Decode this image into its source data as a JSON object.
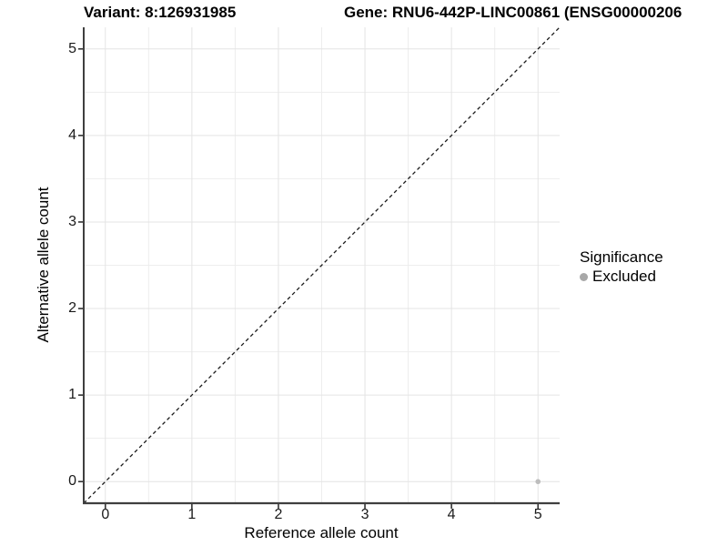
{
  "chart_data": {
    "type": "scatter",
    "title_parts": {
      "variant": "Variant: 8:126931985",
      "gene": "Gene: RNU6-442P-LINC00861 (ENSG00000206"
    },
    "xlabel": "Reference allele count",
    "ylabel": "Alternative allele count",
    "xlim": [
      -0.25,
      5.25
    ],
    "ylim": [
      -0.25,
      5.25
    ],
    "x_ticks": [
      0,
      1,
      2,
      3,
      4,
      5
    ],
    "y_ticks": [
      0,
      1,
      2,
      3,
      4,
      5
    ],
    "minor_ticks": [
      0.5,
      1.5,
      2.5,
      3.5,
      4.5
    ],
    "grid": "major+minor",
    "reference_line": {
      "type": "identity",
      "style": "dashed",
      "color": "#1a1a1a"
    },
    "series": [
      {
        "name": "Excluded",
        "marker": "circle",
        "color": "#bdbdbd",
        "points": [
          [
            5,
            0
          ]
        ]
      }
    ],
    "legend": {
      "title": "Significance",
      "position": "right",
      "items": [
        {
          "label": "Excluded",
          "color": "#a8a8a8"
        }
      ]
    },
    "colors": {
      "grid_major": "#e4e4e4",
      "grid_minor": "#ededed",
      "axis_line": "#3f3f3f",
      "tick_mark": "#333333",
      "text": "#1a1a1a"
    }
  }
}
